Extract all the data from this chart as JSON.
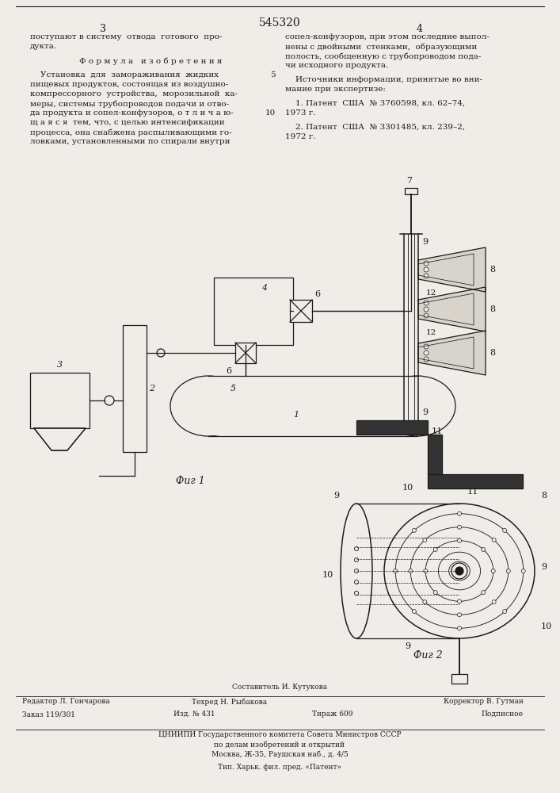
{
  "patent_number": "545320",
  "background_color": "#f0ede8",
  "text_color": "#1a1a1a",
  "fig1_caption": "Фиг 1",
  "fig2_caption": "Фиг 2"
}
